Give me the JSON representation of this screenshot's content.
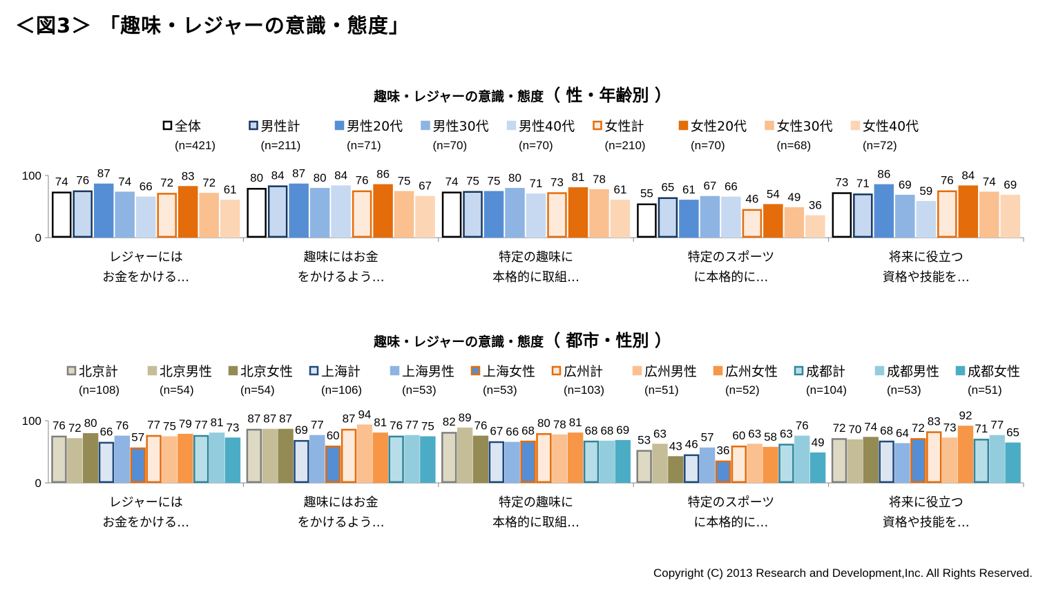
{
  "page": {
    "title": "＜図3＞ 「趣味・レジャーの意識・態度」",
    "copyright": "Copyright (C) 2013 Research and Development,Inc. All Rights Reserved."
  },
  "chart_data": [
    {
      "type": "bar",
      "title": "趣味・レジャーの意識・態度",
      "title_paren": "（ 性・年齢別 ）",
      "ylim": [
        0,
        100
      ],
      "yticks": [
        0,
        100
      ],
      "legend_position": "top",
      "categories": [
        [
          "レジャーには",
          "お金をかける…"
        ],
        [
          "趣味にはお金",
          "をかけるよう…"
        ],
        [
          "特定の趣味に",
          "本格的に取組…"
        ],
        [
          "特定のスポーツ",
          "に本格的に…"
        ],
        [
          "将来に役立つ",
          "資格や技能を…"
        ]
      ],
      "series": [
        {
          "name": "全体",
          "n": "(n=421)",
          "fill": "#ffffff",
          "stroke": "#000000",
          "values": [
            74,
            80,
            74,
            55,
            73
          ]
        },
        {
          "name": "男性計",
          "n": "(n=211)",
          "fill": "#c6d9f1",
          "stroke": "#17375e",
          "values": [
            76,
            84,
            75,
            65,
            71
          ]
        },
        {
          "name": "男性20代",
          "n": "(n=71)",
          "fill": "#558ed5",
          "stroke": "#558ed5",
          "values": [
            87,
            87,
            75,
            61,
            86
          ]
        },
        {
          "name": "男性30代",
          "n": "(n=70)",
          "fill": "#8eb4e3",
          "stroke": "#8eb4e3",
          "values": [
            74,
            80,
            80,
            67,
            69
          ]
        },
        {
          "name": "男性40代",
          "n": "(n=70)",
          "fill": "#c6d9f1",
          "stroke": "#c6d9f1",
          "values": [
            66,
            84,
            71,
            66,
            59
          ]
        },
        {
          "name": "女性計",
          "n": "(n=210)",
          "fill": "#fdeada",
          "stroke": "#e46c0a",
          "values": [
            72,
            76,
            73,
            46,
            76
          ]
        },
        {
          "name": "女性20代",
          "n": "(n=70)",
          "fill": "#e46c0a",
          "stroke": "#e46c0a",
          "values": [
            83,
            86,
            81,
            54,
            84
          ]
        },
        {
          "name": "女性30代",
          "n": "(n=68)",
          "fill": "#fac090",
          "stroke": "#fac090",
          "values": [
            72,
            75,
            78,
            49,
            74
          ]
        },
        {
          "name": "女性40代",
          "n": "(n=72)",
          "fill": "#fcd5b5",
          "stroke": "#fcd5b5",
          "values": [
            61,
            67,
            61,
            36,
            69
          ]
        }
      ]
    },
    {
      "type": "bar",
      "title": "趣味・レジャーの意識・態度",
      "title_paren": "（ 都市・性別 ）",
      "ylim": [
        0,
        100
      ],
      "yticks": [
        0,
        100
      ],
      "legend_position": "top",
      "categories": [
        [
          "レジャーには",
          "お金をかける…"
        ],
        [
          "趣味にはお金",
          "をかけるよう…"
        ],
        [
          "特定の趣味に",
          "本格的に取組…"
        ],
        [
          "特定のスポーツ",
          "に本格的に…"
        ],
        [
          "将来に役立つ",
          "資格や技能を…"
        ]
      ],
      "series": [
        {
          "name": "北京計",
          "n": "(n=108)",
          "fill": "#ddd9c3",
          "stroke": "#7f7f7f",
          "values": [
            76,
            87,
            82,
            53,
            72
          ]
        },
        {
          "name": "北京男性",
          "n": "(n=54)",
          "fill": "#c4bd97",
          "stroke": "#c4bd97",
          "values": [
            72,
            87,
            89,
            63,
            70
          ]
        },
        {
          "name": "北京女性",
          "n": "(n=54)",
          "fill": "#948a54",
          "stroke": "#948a54",
          "values": [
            80,
            87,
            76,
            43,
            74
          ]
        },
        {
          "name": "上海計",
          "n": "(n=106)",
          "fill": "#dce6f2",
          "stroke": "#1f497d",
          "values": [
            66,
            69,
            67,
            46,
            68
          ]
        },
        {
          "name": "上海男性",
          "n": "(n=53)",
          "fill": "#8eb4e3",
          "stroke": "#8eb4e3",
          "values": [
            76,
            77,
            66,
            57,
            64
          ]
        },
        {
          "name": "上海女性",
          "n": "(n=53)",
          "fill": "#558ed5",
          "stroke": "#e46c0a",
          "values": [
            57,
            60,
            68,
            36,
            72
          ]
        },
        {
          "name": "広州計",
          "n": "(n=103)",
          "fill": "#fdeada",
          "stroke": "#e46c0a",
          "values": [
            77,
            87,
            80,
            60,
            83
          ]
        },
        {
          "name": "広州男性",
          "n": "(n=51)",
          "fill": "#fac090",
          "stroke": "#fac090",
          "values": [
            75,
            94,
            78,
            63,
            73
          ]
        },
        {
          "name": "広州女性",
          "n": "(n=52)",
          "fill": "#f79646",
          "stroke": "#f79646",
          "values": [
            79,
            81,
            81,
            58,
            92
          ]
        },
        {
          "name": "成都計",
          "n": "(n=104)",
          "fill": "#b7dee8",
          "stroke": "#31859c",
          "values": [
            77,
            76,
            68,
            63,
            71
          ]
        },
        {
          "name": "成都男性",
          "n": "(n=53)",
          "fill": "#93cddd",
          "stroke": "#93cddd",
          "values": [
            81,
            77,
            68,
            76,
            77
          ]
        },
        {
          "name": "成都女性",
          "n": "(n=51)",
          "fill": "#4bacc6",
          "stroke": "#4bacc6",
          "values": [
            73,
            75,
            69,
            49,
            65
          ]
        }
      ]
    }
  ]
}
